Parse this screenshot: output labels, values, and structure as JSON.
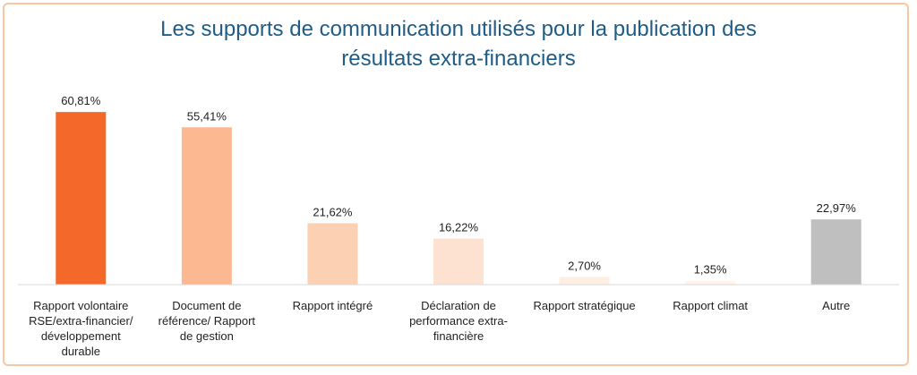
{
  "chart_data": {
    "type": "bar",
    "title": "Les supports de communication utilisés pour la publication des résultats extra-financiers",
    "title_lines": [
      "Les supports de communication utilisés pour la publication des",
      "résultats extra-financiers"
    ],
    "categories": [
      "Rapport volontaire RSE/extra-financier/ développement durable",
      "Document de référence/ Rapport de gestion",
      "Rapport intégré",
      "Déclaration de performance extra-financière",
      "Rapport stratégique",
      "Rapport climat",
      "Autre"
    ],
    "category_lines": [
      [
        "Rapport volontaire",
        "RSE/extra-financier/",
        "développement",
        "durable"
      ],
      [
        "Document de",
        "référence/ Rapport",
        "de gestion"
      ],
      [
        "Rapport intégré"
      ],
      [
        "Déclaration de",
        "performance extra-",
        "financière"
      ],
      [
        "Rapport stratégique"
      ],
      [
        "Rapport climat"
      ],
      [
        "Autre"
      ]
    ],
    "values": [
      60.81,
      55.41,
      21.62,
      16.22,
      2.7,
      1.35,
      22.97
    ],
    "value_labels": [
      "60,81%",
      "55,41%",
      "21,62%",
      "16,22%",
      "2,70%",
      "1,35%",
      "22,97%"
    ],
    "colors": [
      "#f4682a",
      "#fbb891",
      "#fbd0b3",
      "#fde2d1",
      "#feeee4",
      "#fff3eb",
      "#bfbfbf"
    ],
    "ylim": [
      0,
      70
    ],
    "grid": false,
    "xlabel": "",
    "ylabel": ""
  }
}
